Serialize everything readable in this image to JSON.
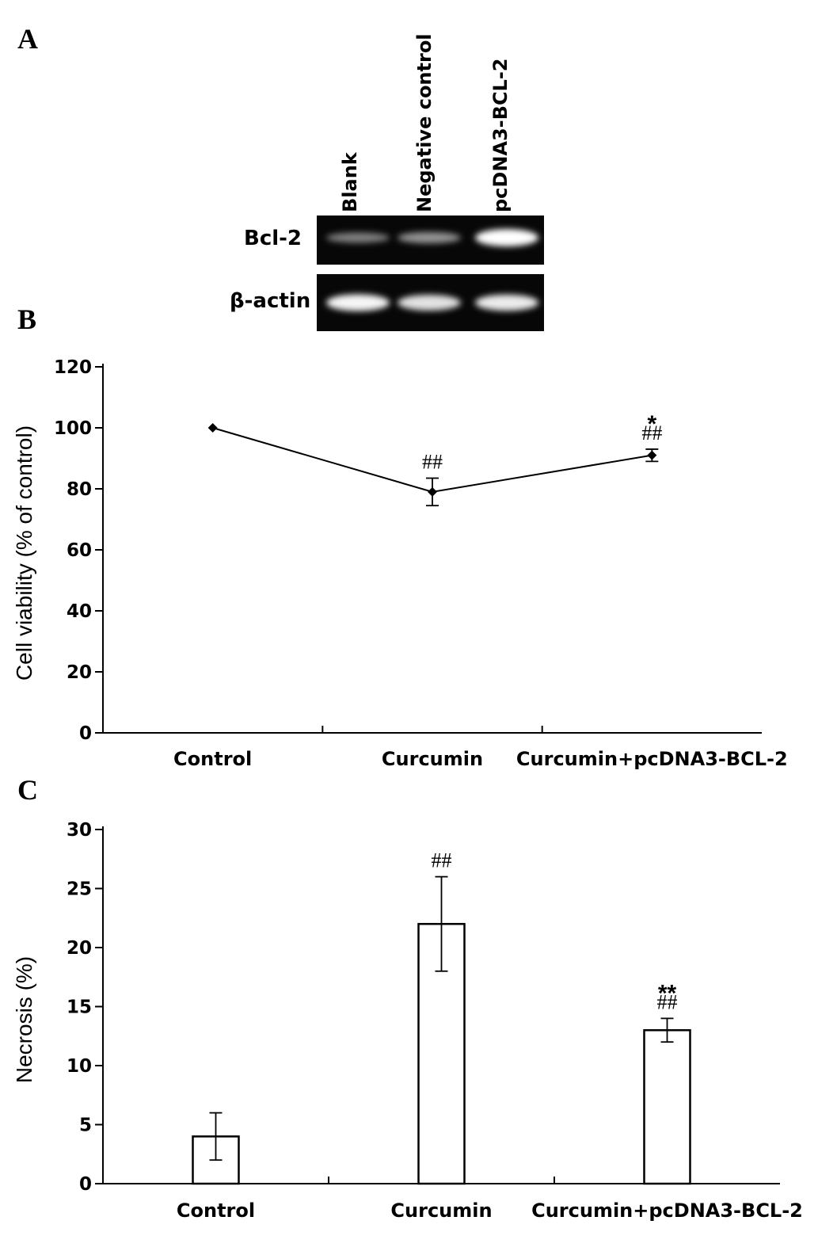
{
  "panels": {
    "a": {
      "letter": "A"
    },
    "b": {
      "letter": "B"
    },
    "c": {
      "letter": "C"
    }
  },
  "gel": {
    "lanes": [
      "Blank",
      "Negative control",
      "pcDNA3-BCL-2"
    ],
    "rows": [
      {
        "label": "Bcl-2",
        "band_intensity": [
          0.35,
          0.45,
          1.0
        ]
      },
      {
        "label": "β-actin",
        "band_intensity": [
          0.95,
          0.85,
          0.9
        ]
      }
    ]
  },
  "chart_data": [
    {
      "type": "line",
      "categories": [
        "Control",
        "Curcumin",
        "Curcumin+pcDNA3-BCL-2"
      ],
      "series": [
        {
          "values": [
            100,
            79,
            91
          ],
          "error": [
            0,
            4.5,
            2
          ]
        }
      ],
      "annotations": [
        [],
        [
          "##"
        ],
        [
          "*",
          "##"
        ]
      ],
      "ylabel": "Cell viability (% of control)",
      "ylim": [
        0,
        120
      ],
      "yticks": [
        0,
        20,
        40,
        60,
        80,
        100,
        120
      ],
      "grid": false
    },
    {
      "type": "bar",
      "categories": [
        "Control",
        "Curcumin",
        "Curcumin+pcDNA3-BCL-2"
      ],
      "series": [
        {
          "values": [
            4,
            22,
            13
          ],
          "error": [
            2,
            4,
            1
          ]
        }
      ],
      "annotations": [
        [],
        [
          "##"
        ],
        [
          "**",
          "##"
        ]
      ],
      "ylabel": "Necrosis (%)",
      "ylim": [
        0,
        30
      ],
      "yticks": [
        0,
        5,
        10,
        15,
        20,
        25,
        30
      ],
      "grid": false
    }
  ]
}
